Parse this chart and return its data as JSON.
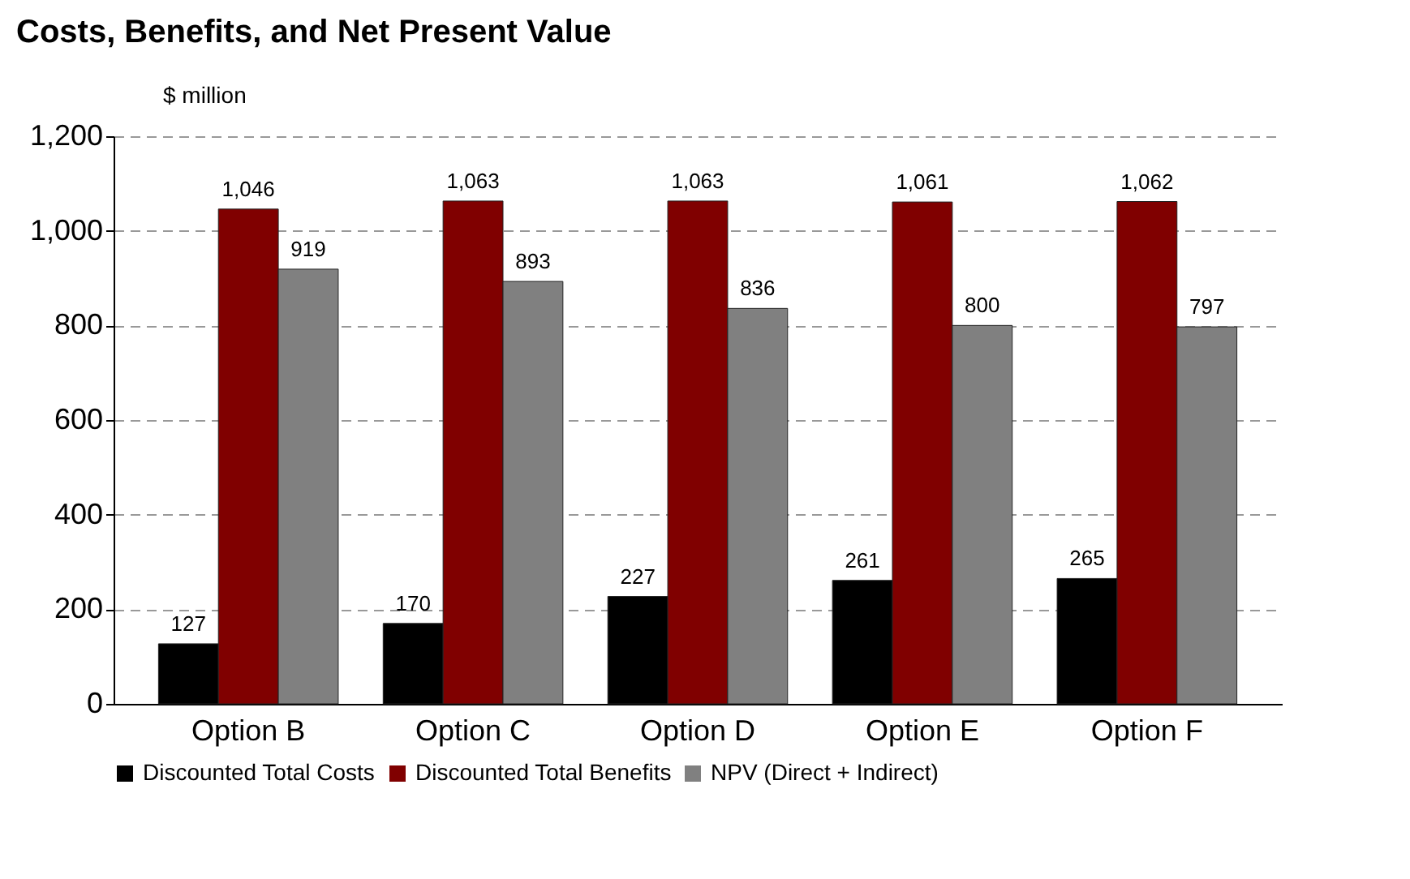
{
  "chart_data": {
    "type": "bar",
    "title": "Costs, Benefits, and Net Present Value",
    "ylabel": "$ million",
    "categories": [
      "Option B",
      "Option C",
      "Option D",
      "Option E",
      "Option F"
    ],
    "series": [
      {
        "name": "Discounted Total Costs",
        "color": "#000000",
        "values": [
          127,
          170,
          227,
          261,
          265
        ],
        "value_labels": [
          "127",
          "170",
          "227",
          "261",
          "265"
        ]
      },
      {
        "name": "Discounted Total Benefits",
        "color": "#800000",
        "values": [
          1046,
          1063,
          1063,
          1061,
          1062
        ],
        "value_labels": [
          "1,046",
          "1,063",
          "1,063",
          "1,061",
          "1,062"
        ]
      },
      {
        "name": "NPV (Direct + Indirect)",
        "color": "#808080",
        "values": [
          919,
          893,
          836,
          800,
          797
        ],
        "value_labels": [
          "919",
          "893",
          "836",
          "800",
          "797"
        ]
      }
    ],
    "ylim": [
      0,
      1200
    ],
    "yticks": [
      0,
      200,
      400,
      600,
      800,
      {
        "value": 1000,
        "label": "1,000"
      },
      {
        "value": 1200,
        "label": "1,200"
      }
    ],
    "grid": "y",
    "legend": "bottom"
  }
}
